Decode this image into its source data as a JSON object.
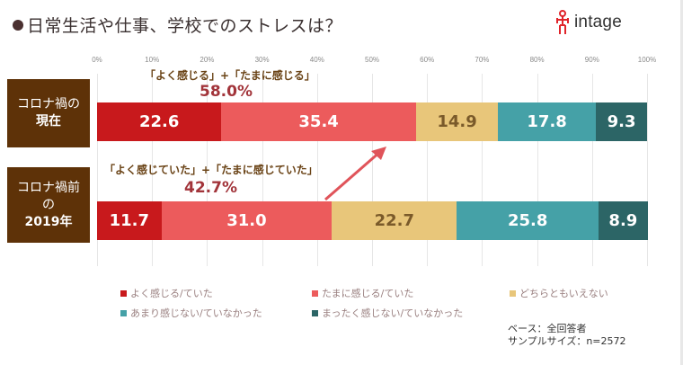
{
  "title": "日常生活や仕事、学校でのストレスは？",
  "logo": {
    "text": "intage"
  },
  "chart_data": {
    "type": "bar",
    "orientation": "horizontal",
    "stacked": true,
    "title": "日常生活や仕事、学校でのストレスは？",
    "xlim": [
      0,
      100
    ],
    "x_ticks": [
      "0%",
      "10%",
      "20%",
      "30%",
      "40%",
      "50%",
      "60%",
      "70%",
      "80%",
      "90%",
      "100%"
    ],
    "grid": true,
    "categories": [
      {
        "lines": [
          "コロナ禍の",
          "現在"
        ]
      },
      {
        "lines": [
          "コロナ禍前",
          "の",
          "2019年"
        ]
      }
    ],
    "series": [
      {
        "name": "よく感じる/ていた",
        "color": "#c8191c",
        "label_style": "light",
        "values": [
          22.6,
          11.7
        ],
        "labels": [
          "22.6",
          "11.7"
        ]
      },
      {
        "name": "たまに感じる/ていた",
        "color": "#ec5b5c",
        "label_style": "light",
        "values": [
          35.4,
          31.0
        ],
        "labels": [
          "35.4",
          "31.0"
        ]
      },
      {
        "name": "どちらともいえない",
        "color": "#e8c67a",
        "label_style": "dark",
        "values": [
          14.9,
          22.7
        ],
        "labels": [
          "14.9",
          "22.7"
        ]
      },
      {
        "name": "あまり感じない/ていなかった",
        "color": "#45a1a7",
        "label_style": "light",
        "values": [
          17.8,
          25.8
        ],
        "labels": [
          "17.8",
          "25.8"
        ]
      },
      {
        "name": "まったく感じない/ていなかった",
        "color": "#2c6566",
        "label_style": "light",
        "values": [
          9.3,
          8.9
        ],
        "labels": [
          "9.3",
          "8.9"
        ]
      }
    ],
    "annotations": [
      {
        "text": "「よく感じる」+「たまに感じる」",
        "value": "58.0%"
      },
      {
        "text": "「よく感じていた」+「たまに感じていた」",
        "value": "42.7%"
      }
    ],
    "legend_placement": "bottom"
  },
  "notes": {
    "base": "ベース：全回答者",
    "sample": "サンプルサイズ：n=2572"
  },
  "colors": {
    "category_box": "#5e3208",
    "arrow": "#e0545a"
  }
}
